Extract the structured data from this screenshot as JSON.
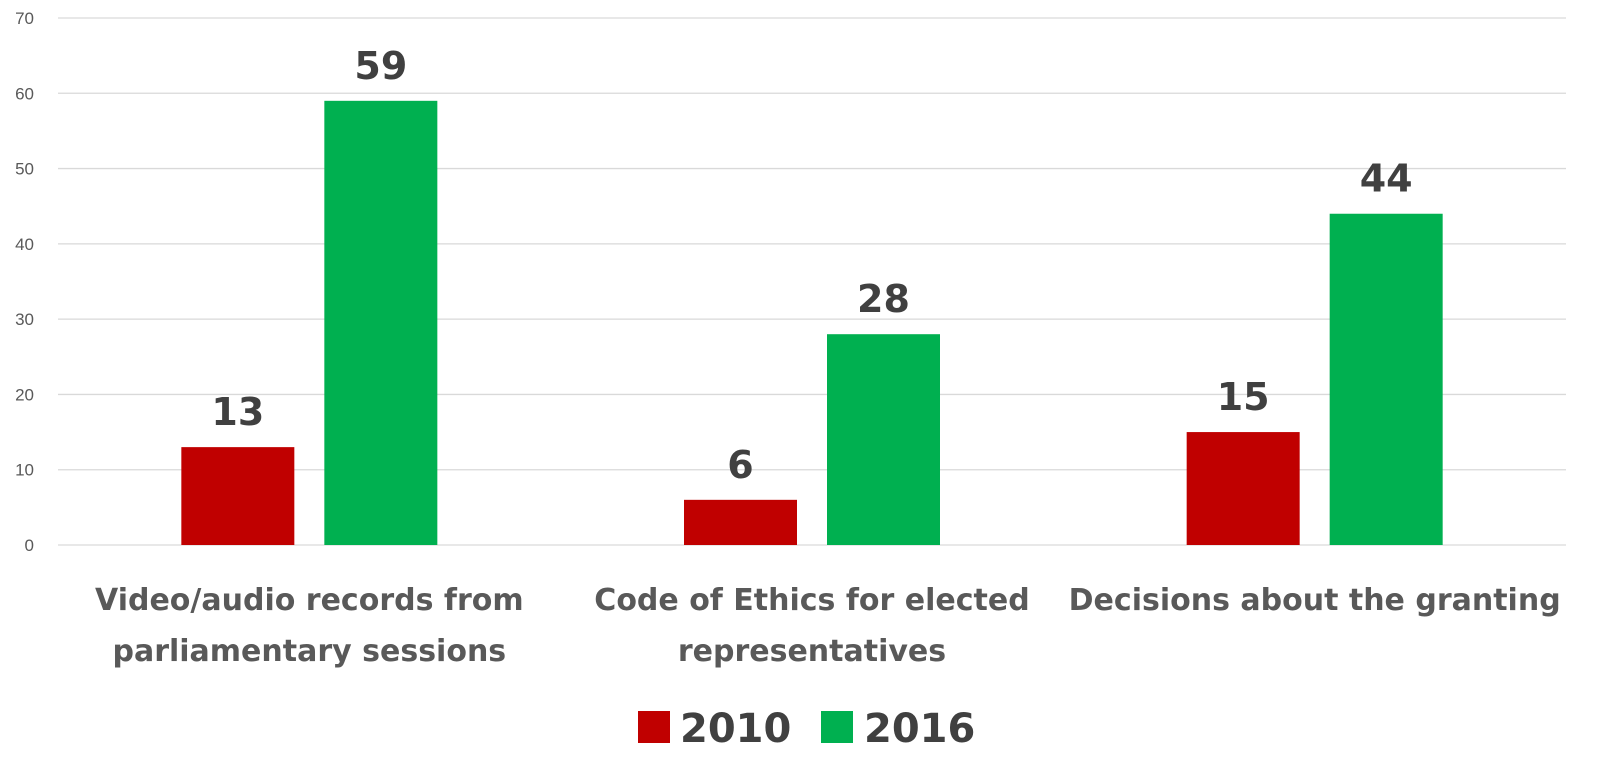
{
  "chart_data": {
    "type": "bar",
    "categories": [
      [
        "Video/audio records from",
        "parliamentary sessions"
      ],
      [
        "Code of Ethics for elected",
        "representatives"
      ],
      [
        "Decisions about the granting"
      ]
    ],
    "series": [
      {
        "name": "2010",
        "values": [
          13,
          6,
          15
        ],
        "color": "#c00000"
      },
      {
        "name": "2016",
        "values": [
          59,
          28,
          44
        ],
        "color": "#00b050"
      }
    ],
    "ylim": [
      0,
      70
    ],
    "yticks": [
      0,
      10,
      20,
      30,
      40,
      50,
      60,
      70
    ],
    "grid": true,
    "legend_position": "bottom",
    "data_labels": true
  }
}
